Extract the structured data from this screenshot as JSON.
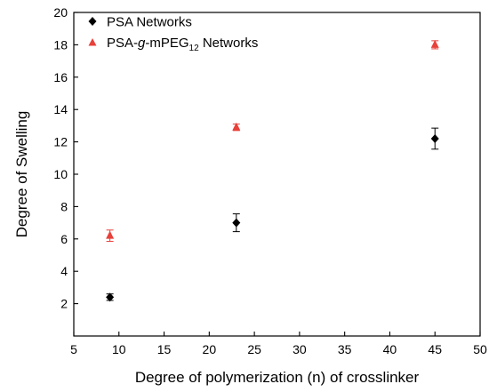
{
  "chart_data": {
    "type": "scatter",
    "title": "",
    "xlabel": "Degree of polymerization (n) of crosslinker",
    "ylabel": "Degree of Swelling",
    "xlim": [
      5,
      50
    ],
    "ylim": [
      0,
      20
    ],
    "xticks": [
      5,
      10,
      15,
      20,
      25,
      30,
      35,
      40,
      45,
      50
    ],
    "yticks": [
      2,
      4,
      6,
      8,
      10,
      12,
      14,
      16,
      18,
      20
    ],
    "grid": false,
    "legend_position": "top-left",
    "series": [
      {
        "name": "PSA Networks",
        "marker": "diamond",
        "color": "#000000",
        "points": [
          {
            "x": 9,
            "y": 2.4,
            "err": 0.2
          },
          {
            "x": 23,
            "y": 7.0,
            "err": 0.55
          },
          {
            "x": 45,
            "y": 12.2,
            "err": 0.65
          }
        ]
      },
      {
        "name_parts": [
          "PSA-",
          "g",
          "-mPEG",
          "12",
          " Networks"
        ],
        "marker": "triangle",
        "color": "#e8403a",
        "points": [
          {
            "x": 9,
            "y": 6.2,
            "err": 0.35
          },
          {
            "x": 23,
            "y": 12.9,
            "err": 0.2
          },
          {
            "x": 45,
            "y": 18.0,
            "err": 0.25
          }
        ]
      }
    ]
  }
}
